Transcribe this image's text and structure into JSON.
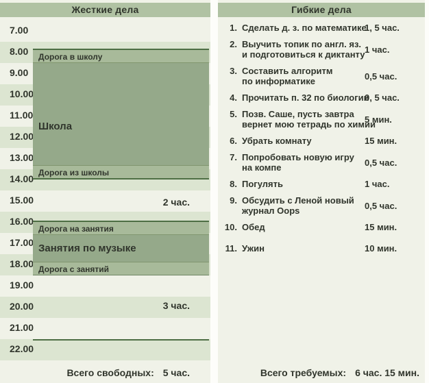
{
  "left_panel": {
    "title": "Жесткие дела",
    "hours": [
      {
        "t": "7.00"
      },
      {
        "t": "8.00"
      },
      {
        "t": "9.00"
      },
      {
        "t": "10.00"
      },
      {
        "t": "11.00"
      },
      {
        "t": "12.00"
      },
      {
        "t": "13.00"
      },
      {
        "t": "14.00"
      },
      {
        "t": "15.00"
      },
      {
        "t": "16.00"
      },
      {
        "t": "17.00"
      },
      {
        "t": "18.00"
      },
      {
        "t": "19.00"
      },
      {
        "t": "20.00"
      },
      {
        "t": "21.00"
      },
      {
        "t": "22.00"
      }
    ],
    "school_block": {
      "road_to": "Дорога в школу",
      "label": "Школа",
      "road_from": "Дорога из школы"
    },
    "music_block": {
      "road_to": "Дорога на занятия",
      "label": "Занятия по музыке",
      "road_from": "Дорога с занятий"
    },
    "free_slot_afternoon": "2 час.",
    "free_slot_evening": "3 час.",
    "total_label": "Всего свободных:",
    "total_value": "5 час."
  },
  "right_panel": {
    "title": "Гибкие дела",
    "items": [
      {
        "num": "1.",
        "lines": [
          "Сделать д. з. по математике"
        ],
        "duration": "1, 5 час."
      },
      {
        "num": "2.",
        "lines": [
          "Выучить топик по англ. яз.",
          "и подготовиться к диктанту"
        ],
        "duration": "1 час."
      },
      {
        "num": "3.",
        "lines": [
          "Составить алгоритм",
          "по информатике"
        ],
        "duration": "0,5 час."
      },
      {
        "num": "4.",
        "lines": [
          "Прочитать п. 32 по биологии"
        ],
        "duration": "0, 5 час."
      },
      {
        "num": "5.",
        "lines": [
          "Позв. Саше, пусть завтра",
          "вернет мою тетрадь по химии"
        ],
        "duration": "5 мин."
      },
      {
        "num": "6.",
        "lines": [
          "Убрать комнату"
        ],
        "duration": "15 мин."
      },
      {
        "num": "7.",
        "lines": [
          "Попробовать новую игру",
          "на компе"
        ],
        "duration": "0,5 час."
      },
      {
        "num": "8.",
        "lines": [
          "Погулять"
        ],
        "duration": "1 час."
      },
      {
        "num": "9.",
        "lines": [
          "Обсудить с Леной новый",
          "журнал Oops"
        ],
        "duration": "0,5 час."
      },
      {
        "num": "10.",
        "lines": [
          "Обед"
        ],
        "duration": "15 мин."
      },
      {
        "num": "11.",
        "lines": [
          "Ужин"
        ],
        "duration": "10 мин."
      }
    ],
    "total_label": "Всего требуемых:",
    "total_value": "6 час. 15 мин."
  },
  "colors": {
    "panel_bg": "#f0f2e8",
    "row_stripe": "#dce5d1",
    "header_band": "#b0c2a3",
    "block_fill": "#95a98a",
    "block_strip": "#a8ba9a",
    "dark_line": "#4d6e44",
    "text": "#30352c"
  }
}
